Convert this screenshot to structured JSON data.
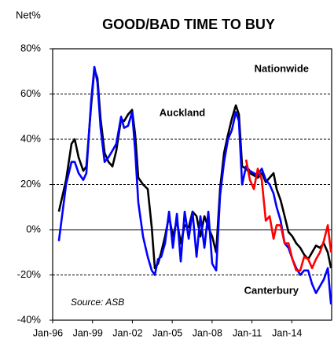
{
  "chart_data": {
    "type": "line",
    "title": "GOOD/BAD TIME TO BUY",
    "y_label": "Net%",
    "source": "Source: ASB",
    "x": [
      1996.47,
      1997.01,
      1997.42,
      1997.66,
      1997.95,
      1998.31,
      1998.54,
      1998.9,
      1999.14,
      1999.37,
      1999.61,
      1999.91,
      2000.2,
      2000.5,
      2000.79,
      2001.15,
      2001.38,
      2001.68,
      2001.98,
      2002.21,
      2002.45,
      2002.8,
      2003.16,
      2003.46,
      2003.69,
      2003.93,
      2004.17,
      2004.46,
      2004.76,
      2005.05,
      2005.35,
      2005.64,
      2005.94,
      2006.24,
      2006.53,
      2006.83,
      2007.12,
      2007.42,
      2007.72,
      2008.01,
      2008.31,
      2008.6,
      2008.9,
      2009.2,
      2009.49,
      2009.79,
      2010.02,
      2010.26,
      2010.56,
      2010.85,
      2011.15,
      2011.44,
      2011.74,
      2012.04,
      2012.33,
      2012.63,
      2012.86,
      2013.16,
      2013.46,
      2013.75,
      2014.05,
      2014.34,
      2014.64,
      2014.93,
      2015.23,
      2015.53,
      2015.82,
      2016.12,
      2016.41,
      2016.71,
      2016.95
    ],
    "series": [
      {
        "name": "Nationwide",
        "color": "#000000",
        "values": [
          8,
          22,
          38,
          40,
          32,
          26,
          28,
          55,
          71,
          67,
          49,
          34,
          30,
          28,
          35,
          49,
          48,
          51,
          53,
          42,
          23,
          20,
          18,
          1,
          -17,
          -15,
          -10,
          -3,
          6,
          -3,
          4,
          -6,
          2,
          1,
          8,
          6,
          -3,
          6,
          1,
          -3,
          -10,
          18,
          34,
          42,
          49,
          55,
          51,
          28,
          27,
          25,
          24,
          23,
          25,
          21,
          23,
          25,
          18,
          13,
          6,
          -1,
          -3,
          -6,
          -8,
          -11,
          -13,
          -10,
          -7,
          -8,
          -6,
          -10,
          -17
        ]
      },
      {
        "name": "Auckland",
        "color": "#0000ff",
        "values": [
          -5,
          20,
          30,
          30,
          25,
          22,
          25,
          57,
          72,
          65,
          45,
          30,
          32,
          35,
          38,
          50,
          45,
          46,
          52,
          35,
          12,
          -3,
          -12,
          -18,
          -20,
          -13,
          -12,
          -6,
          8,
          -8,
          7,
          -14,
          8,
          -4,
          8,
          -12,
          6,
          -8,
          8,
          -15,
          -18,
          15,
          30,
          40,
          44,
          52,
          48,
          20,
          28,
          26,
          25,
          24,
          27,
          22,
          20,
          16,
          10,
          4,
          -6,
          -8,
          -13,
          -17,
          -20,
          -18,
          -18,
          -24,
          -28,
          -25,
          -22,
          -17,
          -33
        ]
      },
      {
        "name": "Canterbury",
        "color": "#ff0000",
        "values": [
          null,
          null,
          null,
          null,
          null,
          null,
          null,
          null,
          null,
          null,
          null,
          null,
          null,
          null,
          null,
          null,
          null,
          null,
          null,
          null,
          null,
          null,
          null,
          null,
          null,
          null,
          null,
          null,
          null,
          null,
          null,
          null,
          null,
          null,
          null,
          null,
          null,
          null,
          null,
          null,
          null,
          null,
          null,
          null,
          null,
          null,
          null,
          null,
          31,
          22,
          18,
          27,
          22,
          4,
          6,
          -4,
          2,
          2,
          -6,
          -6,
          -13,
          -18,
          -18,
          -12,
          -13,
          -17,
          -13,
          -10,
          -5,
          2,
          -10
        ]
      }
    ],
    "xlim": [
      1996,
      2017
    ],
    "xticks": [
      {
        "value": 1996,
        "label": "Jan-96"
      },
      {
        "value": 1999,
        "label": "Jan-99"
      },
      {
        "value": 2002,
        "label": "Jan-02"
      },
      {
        "value": 2005,
        "label": "Jan-05"
      },
      {
        "value": 2008,
        "label": "Jan-08"
      },
      {
        "value": 2011,
        "label": "Jan-11"
      },
      {
        "value": 2014,
        "label": "Jan-14"
      }
    ],
    "ylim": [
      -40,
      80
    ],
    "yticks": [
      {
        "value": -40,
        "label": "-40%"
      },
      {
        "value": -20,
        "label": "-20%"
      },
      {
        "value": 0,
        "label": "0%"
      },
      {
        "value": 20,
        "label": "20%"
      },
      {
        "value": 40,
        "label": "40%"
      },
      {
        "value": 60,
        "label": "60%"
      },
      {
        "value": 80,
        "label": "80%"
      }
    ],
    "grid": true
  }
}
